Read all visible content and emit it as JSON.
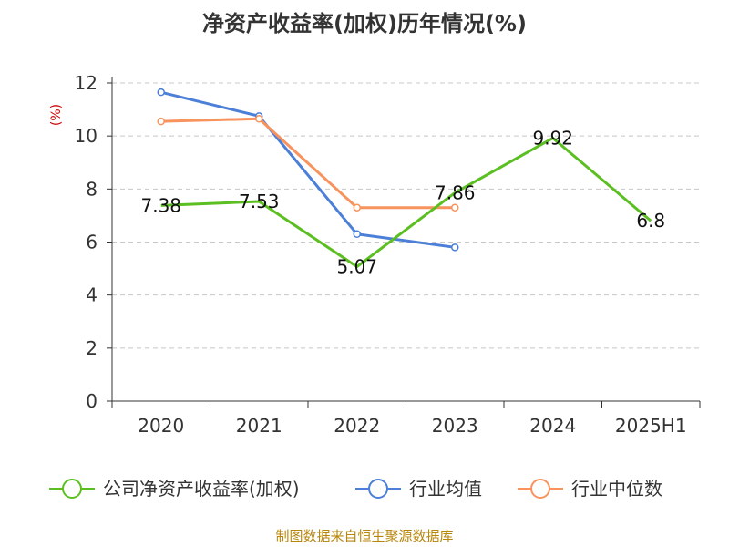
{
  "chart_data": {
    "type": "line",
    "title": "净资产收益率(加权)历年情况(%)",
    "ylabel": "(%)",
    "xlabel": "",
    "categories": [
      "2020",
      "2021",
      "2022",
      "2023",
      "2024",
      "2025H1"
    ],
    "ylim": [
      0,
      12
    ],
    "yticks": [
      "0",
      "2",
      "4",
      "6",
      "8",
      "10",
      "12"
    ],
    "grid": true,
    "legend_position": "bottom",
    "series": [
      {
        "name": "公司净资产收益率(加权)",
        "color": "#5bbf21",
        "values": [
          7.38,
          7.53,
          5.07,
          7.86,
          9.92,
          6.8
        ],
        "labels": [
          "7.38",
          "7.53",
          "5.07",
          "7.86",
          "9.92",
          "6.8"
        ]
      },
      {
        "name": "行业均值",
        "color": "#4c7fd8",
        "values": [
          11.65,
          10.75,
          6.3,
          5.8,
          null,
          null
        ]
      },
      {
        "name": "行业中位数",
        "color": "#f8935e",
        "values": [
          10.55,
          10.65,
          7.3,
          7.3,
          null,
          null
        ]
      }
    ],
    "source": "制图数据来自恒生聚源数据库"
  }
}
